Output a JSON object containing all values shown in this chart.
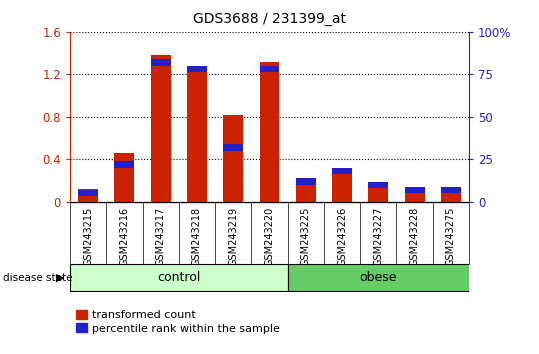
{
  "title": "GDS3688 / 231399_at",
  "samples": [
    "GSM243215",
    "GSM243216",
    "GSM243217",
    "GSM243218",
    "GSM243219",
    "GSM243220",
    "GSM243225",
    "GSM243226",
    "GSM243227",
    "GSM243228",
    "GSM243275"
  ],
  "transformed_count": [
    0.12,
    0.46,
    1.38,
    1.27,
    0.82,
    1.32,
    0.22,
    0.28,
    0.17,
    0.12,
    0.13
  ],
  "percentile_rank": [
    5,
    22,
    82,
    78,
    32,
    78,
    12,
    18,
    10,
    7,
    7
  ],
  "groups": [
    {
      "label": "control",
      "start": 0,
      "end": 6,
      "color": "#ccffcc"
    },
    {
      "label": "obese",
      "start": 6,
      "end": 11,
      "color": "#66cc66"
    }
  ],
  "left_ylim": [
    0,
    1.6
  ],
  "right_ylim": [
    0,
    100
  ],
  "left_yticks": [
    0,
    0.4,
    0.8,
    1.2,
    1.6
  ],
  "right_yticks": [
    0,
    25,
    50,
    75,
    100
  ],
  "right_yticklabels": [
    "0",
    "25",
    "50",
    "75",
    "100%"
  ],
  "bar_color_red": "#cc2200",
  "bar_color_blue": "#2222cc",
  "bar_width": 0.55,
  "legend_red_label": "transformed count",
  "legend_blue_label": "percentile rank within the sample",
  "disease_state_label": "disease state",
  "left_ytick_color": "#cc2200",
  "right_ytick_color": "#2222cc",
  "tick_area_color": "#cccccc",
  "control_color": "#ccffcc",
  "obese_color": "#66cc66",
  "fig_width": 5.39,
  "fig_height": 3.54
}
